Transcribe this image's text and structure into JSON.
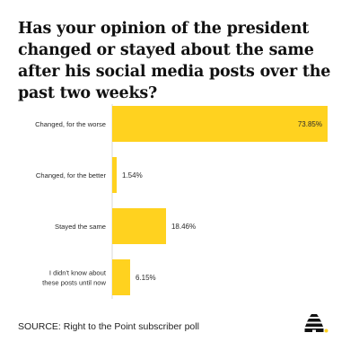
{
  "chart_data": {
    "type": "bar",
    "orientation": "horizontal",
    "title": "Has your opinion of the president changed or stayed about the same after his social media posts over the past two weeks?",
    "categories": [
      [
        "Changed, for the worse"
      ],
      [
        "Changed, for the better"
      ],
      [
        "Stayed the same"
      ],
      [
        "I didn't know about",
        "these posts until now"
      ]
    ],
    "values": [
      73.85,
      1.54,
      18.46,
      6.15
    ],
    "value_labels": [
      "73.85%",
      "1.54%",
      "18.46%",
      "6.15%"
    ],
    "xlim": [
      0,
      73.85
    ],
    "grid": false,
    "bar_color": "#FFD21F"
  },
  "source": "SOURCE: Right to the Point subscriber poll",
  "colors": {
    "accent": "#FFD21F",
    "text": "#1a1a1a"
  },
  "logo_icon": "beehive-icon"
}
